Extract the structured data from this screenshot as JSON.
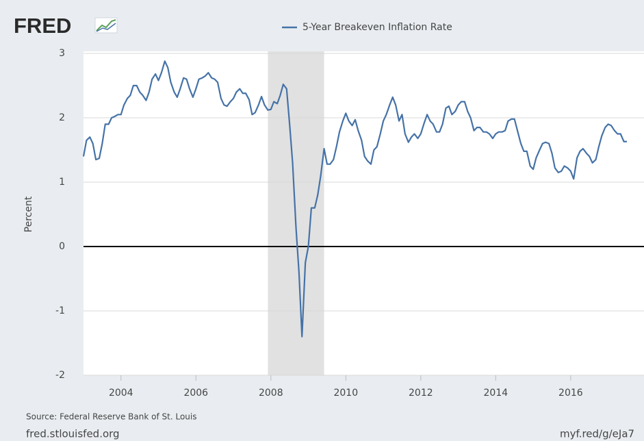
{
  "chart_data": {
    "type": "line",
    "logo": "FRED",
    "y_label": "Percent",
    "source": "Source: Federal Reserve Bank of St. Louis",
    "footer_left": "fred.stlouisfed.org",
    "footer_right": "myf.red/g/eJa7",
    "xlim": [
      2003,
      2017.5
    ],
    "xticks": [
      2004,
      2006,
      2008,
      2010,
      2012,
      2014,
      2016
    ],
    "ylim": [
      -2,
      3
    ],
    "yticks": [
      -2,
      -1,
      0,
      1,
      2,
      3
    ],
    "grid": true,
    "recession": [
      2007.92,
      2009.42
    ],
    "x": [
      2003.0,
      2003.08,
      2003.17,
      2003.25,
      2003.33,
      2003.42,
      2003.5,
      2003.58,
      2003.67,
      2003.75,
      2003.83,
      2003.92,
      2004.0,
      2004.08,
      2004.17,
      2004.25,
      2004.33,
      2004.42,
      2004.5,
      2004.58,
      2004.67,
      2004.75,
      2004.83,
      2004.92,
      2005.0,
      2005.08,
      2005.17,
      2005.25,
      2005.33,
      2005.42,
      2005.5,
      2005.58,
      2005.67,
      2005.75,
      2005.83,
      2005.92,
      2006.0,
      2006.08,
      2006.17,
      2006.25,
      2006.33,
      2006.42,
      2006.5,
      2006.58,
      2006.67,
      2006.75,
      2006.83,
      2006.92,
      2007.0,
      2007.08,
      2007.17,
      2007.25,
      2007.33,
      2007.42,
      2007.5,
      2007.58,
      2007.67,
      2007.75,
      2007.83,
      2007.92,
      2008.0,
      2008.08,
      2008.17,
      2008.25,
      2008.33,
      2008.42,
      2008.5,
      2008.58,
      2008.67,
      2008.75,
      2008.83,
      2008.92,
      2009.0,
      2009.08,
      2009.17,
      2009.25,
      2009.33,
      2009.42,
      2009.5,
      2009.58,
      2009.67,
      2009.75,
      2009.83,
      2009.92,
      2010.0,
      2010.08,
      2010.17,
      2010.25,
      2010.33,
      2010.42,
      2010.5,
      2010.58,
      2010.67,
      2010.75,
      2010.83,
      2010.92,
      2011.0,
      2011.08,
      2011.17,
      2011.25,
      2011.33,
      2011.42,
      2011.5,
      2011.58,
      2011.67,
      2011.75,
      2011.83,
      2011.92,
      2012.0,
      2012.08,
      2012.17,
      2012.25,
      2012.33,
      2012.42,
      2012.5,
      2012.58,
      2012.67,
      2012.75,
      2012.83,
      2012.92,
      2013.0,
      2013.08,
      2013.17,
      2013.25,
      2013.33,
      2013.42,
      2013.5,
      2013.58,
      2013.67,
      2013.75,
      2013.83,
      2013.92,
      2014.0,
      2014.08,
      2014.17,
      2014.25,
      2014.33,
      2014.42,
      2014.5,
      2014.58,
      2014.67,
      2014.75,
      2014.83,
      2014.92,
      2015.0,
      2015.08,
      2015.17,
      2015.25,
      2015.33,
      2015.42,
      2015.5,
      2015.58,
      2015.67,
      2015.75,
      2015.83,
      2015.92,
      2016.0,
      2016.08,
      2016.17,
      2016.25,
      2016.33,
      2016.42,
      2016.5,
      2016.58,
      2016.67,
      2016.75,
      2016.83,
      2016.92,
      2017.0,
      2017.08,
      2017.17,
      2017.25,
      2017.33,
      2017.42,
      2017.5
    ],
    "series": [
      {
        "name": "5-Year Breakeven Inflation Rate",
        "color": "#4572a7",
        "values": [
          1.4,
          1.65,
          1.7,
          1.6,
          1.35,
          1.37,
          1.6,
          1.9,
          1.9,
          2.0,
          2.02,
          2.05,
          2.05,
          2.2,
          2.3,
          2.35,
          2.5,
          2.5,
          2.4,
          2.35,
          2.27,
          2.4,
          2.6,
          2.68,
          2.58,
          2.7,
          2.88,
          2.78,
          2.55,
          2.4,
          2.32,
          2.45,
          2.62,
          2.6,
          2.45,
          2.32,
          2.45,
          2.6,
          2.62,
          2.65,
          2.7,
          2.62,
          2.6,
          2.55,
          2.3,
          2.2,
          2.18,
          2.25,
          2.3,
          2.4,
          2.45,
          2.38,
          2.38,
          2.28,
          2.05,
          2.08,
          2.2,
          2.33,
          2.2,
          2.12,
          2.13,
          2.25,
          2.22,
          2.35,
          2.52,
          2.45,
          1.9,
          1.3,
          0.3,
          -0.4,
          -1.4,
          -0.25,
          0.0,
          0.6,
          0.6,
          0.8,
          1.1,
          1.52,
          1.28,
          1.28,
          1.35,
          1.55,
          1.78,
          1.95,
          2.07,
          1.95,
          1.88,
          1.97,
          1.8,
          1.65,
          1.4,
          1.33,
          1.28,
          1.5,
          1.55,
          1.75,
          1.95,
          2.05,
          2.2,
          2.32,
          2.2,
          1.95,
          2.05,
          1.75,
          1.62,
          1.7,
          1.75,
          1.68,
          1.75,
          1.9,
          2.05,
          1.95,
          1.9,
          1.78,
          1.78,
          1.9,
          2.15,
          2.18,
          2.05,
          2.1,
          2.2,
          2.25,
          2.25,
          2.1,
          2.0,
          1.8,
          1.85,
          1.85,
          1.78,
          1.78,
          1.75,
          1.68,
          1.75,
          1.78,
          1.78,
          1.8,
          1.95,
          1.98,
          1.98,
          1.8,
          1.6,
          1.48,
          1.48,
          1.25,
          1.2,
          1.38,
          1.5,
          1.6,
          1.62,
          1.6,
          1.45,
          1.22,
          1.15,
          1.17,
          1.25,
          1.22,
          1.17,
          1.05,
          1.38,
          1.48,
          1.52,
          1.45,
          1.4,
          1.3,
          1.35,
          1.55,
          1.72,
          1.85,
          1.9,
          1.88,
          1.8,
          1.75,
          1.75,
          1.63,
          1.63
        ]
      }
    ]
  }
}
